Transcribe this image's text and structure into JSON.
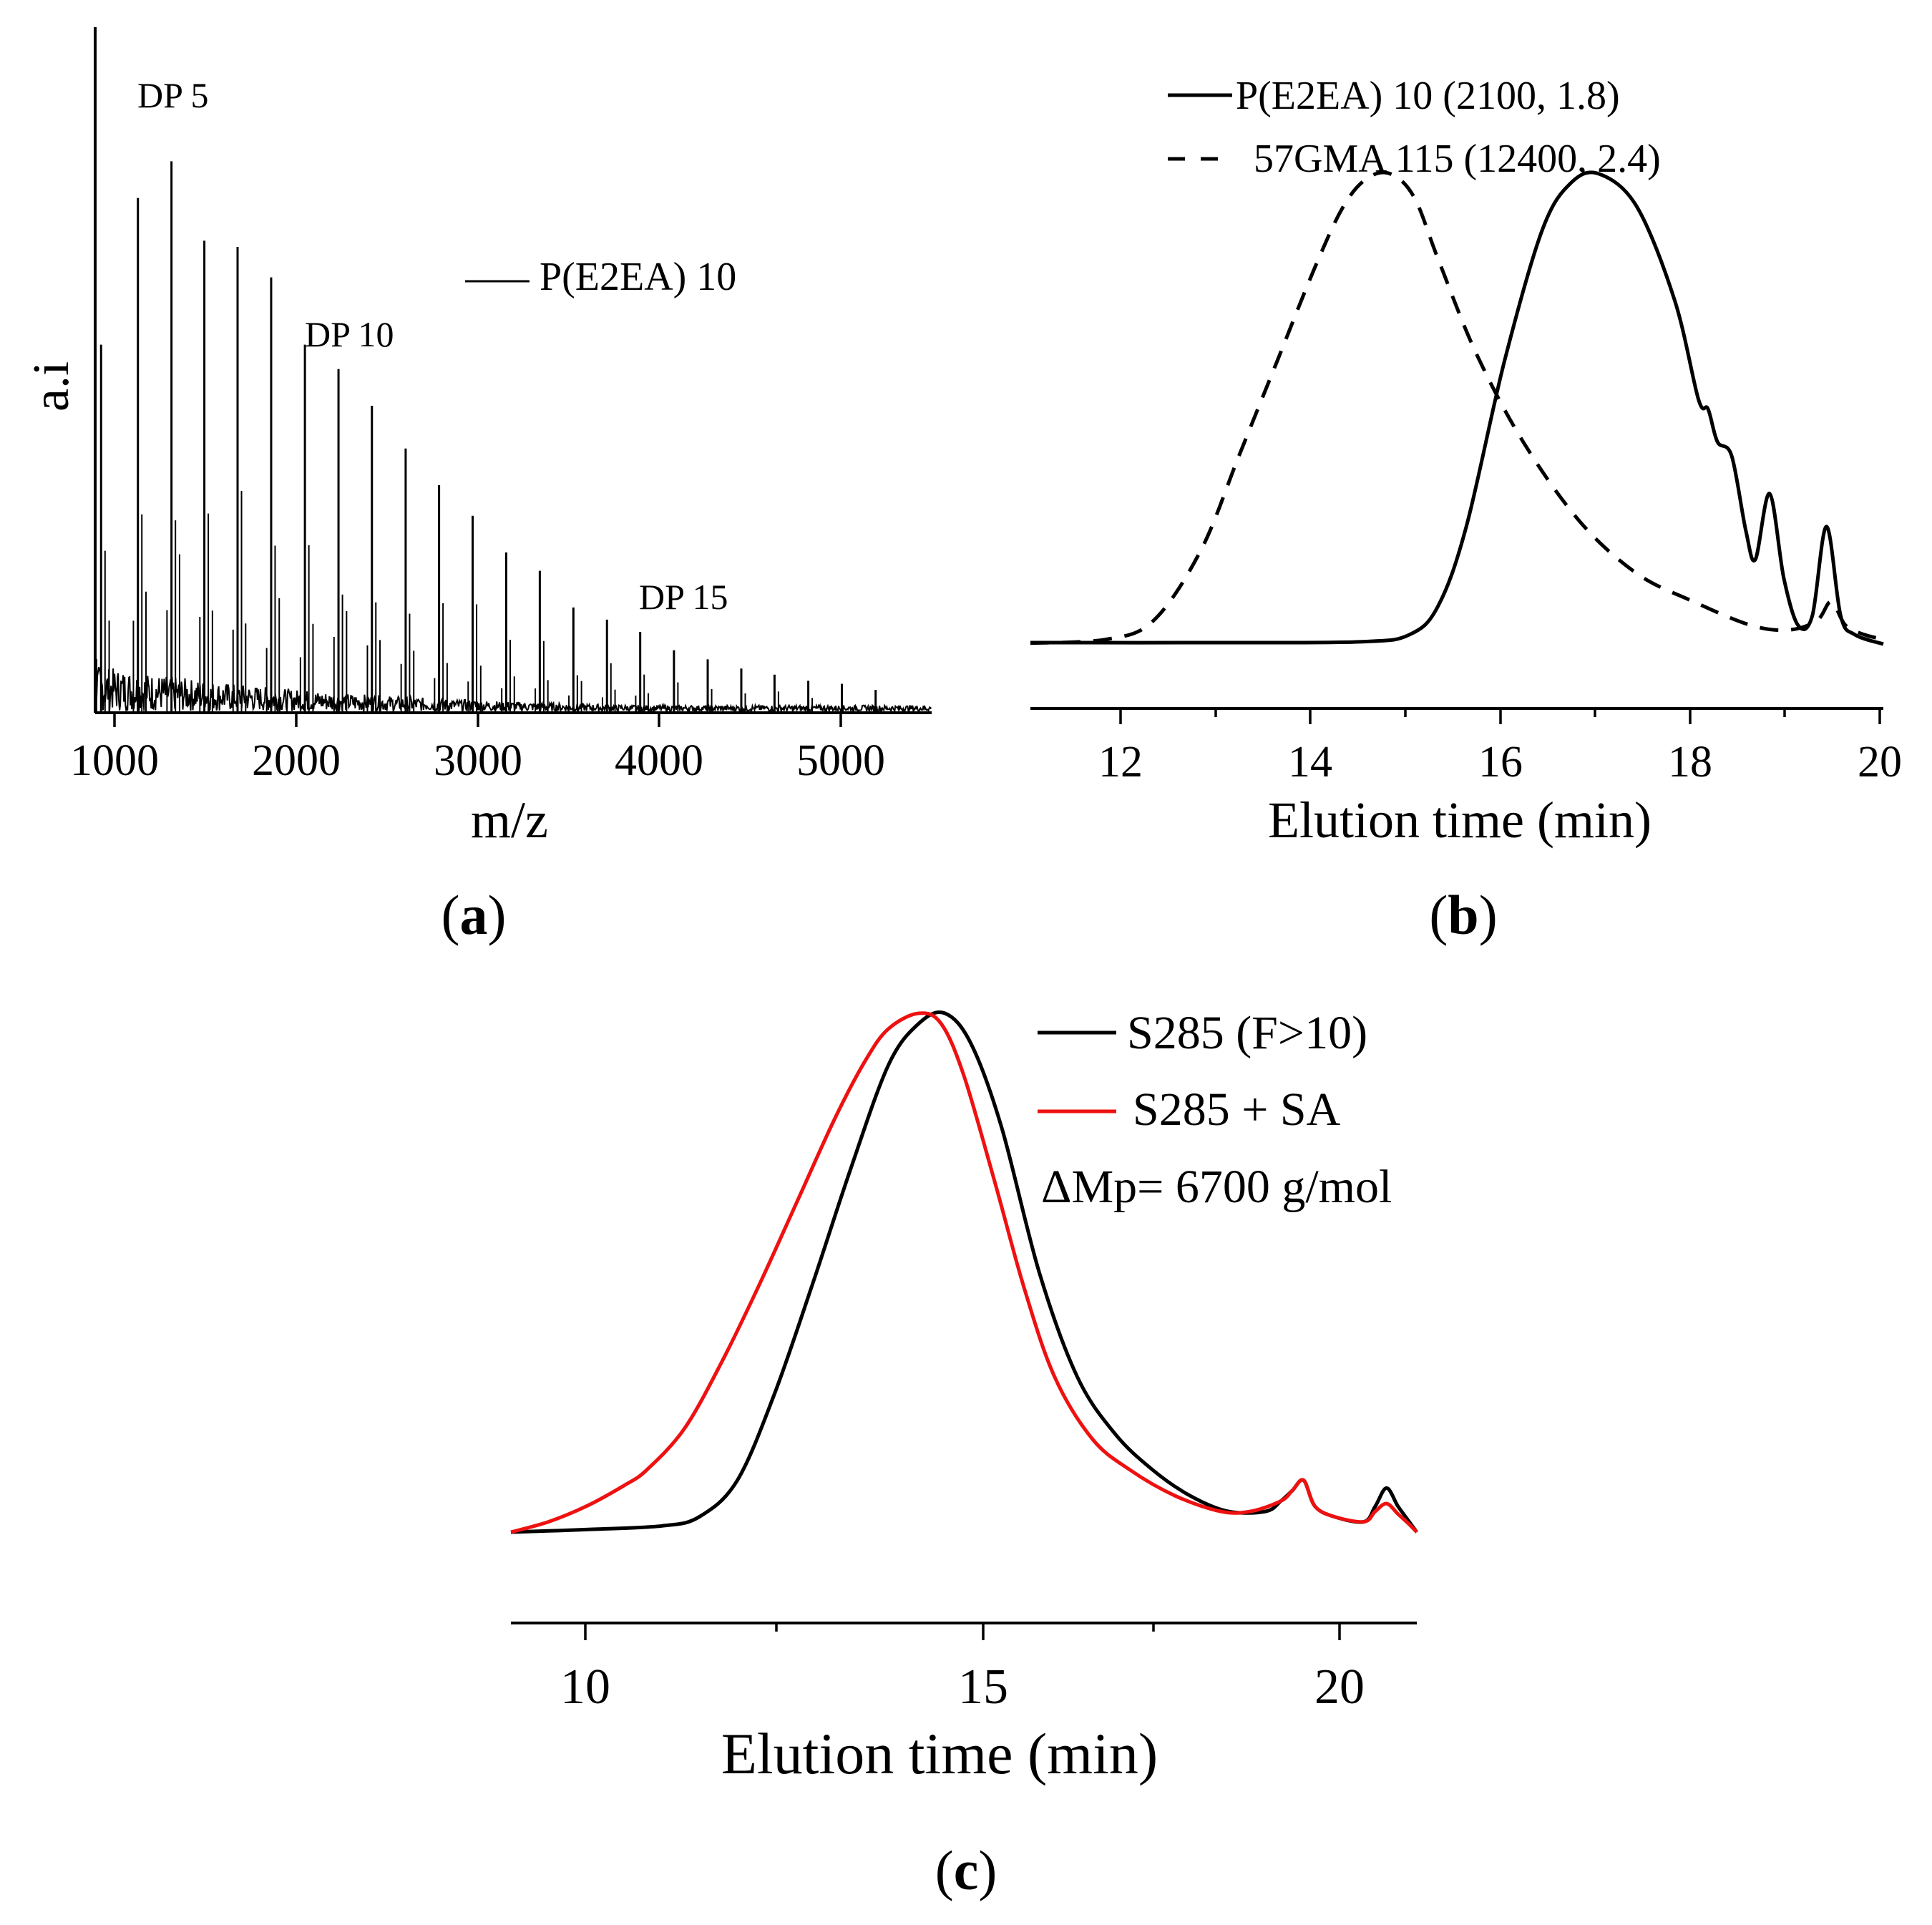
{
  "chart_data": [
    {
      "panel": "a",
      "type": "line",
      "title": "",
      "xlabel": "m/z",
      "ylabel": "a.i",
      "xlim": [
        890,
        5540
      ],
      "ylim": [
        0,
        1.0
      ],
      "xticks": [
        1000,
        2000,
        3000,
        4000,
        5000
      ],
      "legend": [
        {
          "name": "P(E2EA) 10",
          "style": "solid",
          "color": "#000000",
          "placement": "upper-middle"
        }
      ],
      "annotations": [
        {
          "text": "DP 5",
          "x": 1300
        },
        {
          "text": "DP 10",
          "x": 2060
        },
        {
          "text": "DP 15",
          "x": 3910
        }
      ],
      "series": [
        {
          "name": "P(E2EA) 10 main peaks",
          "x": [
            915,
            1120,
            1307,
            1490,
            1675,
            1862,
            2050,
            2237,
            2423,
            2611,
            2797,
            2984,
            3171,
            3358,
            3545,
            3732,
            3917,
            4105,
            4293,
            4480,
            4665,
            4853,
            5040,
            5228
          ],
          "values": [
            0.6,
            0.84,
            0.9,
            0.77,
            0.76,
            0.71,
            0.6,
            0.56,
            0.5,
            0.43,
            0.37,
            0.32,
            0.26,
            0.23,
            0.17,
            0.15,
            0.13,
            0.1,
            0.085,
            0.07,
            0.06,
            0.05,
            0.045,
            0.035
          ]
        }
      ]
    },
    {
      "panel": "b",
      "type": "line",
      "title": "",
      "xlabel": "Elution time (min)",
      "ylabel": "",
      "xlim": [
        11,
        20
      ],
      "ylim": [
        0,
        1
      ],
      "xticks": [
        12,
        14,
        16,
        18,
        20
      ],
      "series": [
        {
          "name": "P(E2EA) 10 (2100, 1.8)",
          "style": "solid",
          "color": "#000000",
          "x": [
            11.0,
            13.0,
            14.5,
            15.0,
            15.3,
            15.6,
            16.0,
            16.4,
            16.7,
            17.0,
            17.4,
            17.8,
            18.05,
            18.15,
            18.25,
            18.4,
            18.55,
            18.65,
            18.8,
            18.95,
            19.1,
            19.25,
            19.4,
            19.55,
            19.7,
            20.0
          ],
          "values": [
            0.003,
            0.003,
            0.005,
            0.02,
            0.08,
            0.25,
            0.6,
            0.88,
            0.98,
            1.0,
            0.93,
            0.73,
            0.52,
            0.5,
            0.43,
            0.4,
            0.24,
            0.18,
            0.32,
            0.14,
            0.04,
            0.06,
            0.25,
            0.06,
            0.02,
            0.0
          ]
        },
        {
          "name": "57GMA 115 (12400, 2.4)",
          "style": "dashed",
          "color": "#000000",
          "x": [
            11.0,
            11.8,
            12.3,
            12.8,
            13.2,
            13.6,
            14.0,
            14.3,
            14.55,
            14.8,
            15.05,
            15.3,
            15.7,
            16.2,
            16.8,
            17.4,
            18.0,
            18.6,
            19.0,
            19.3,
            19.45,
            19.6,
            19.8,
            20.0
          ],
          "values": [
            0.002,
            0.01,
            0.05,
            0.2,
            0.4,
            0.6,
            0.8,
            0.93,
            0.99,
            1.0,
            0.95,
            0.82,
            0.62,
            0.43,
            0.26,
            0.15,
            0.09,
            0.04,
            0.03,
            0.05,
            0.09,
            0.04,
            0.02,
            0.01
          ]
        }
      ]
    },
    {
      "panel": "c",
      "type": "line",
      "title": "",
      "xlabel": "Elution time (min)",
      "ylabel": "",
      "xlim": [
        9,
        21
      ],
      "ylim": [
        0,
        1
      ],
      "xticks": [
        10,
        15,
        20
      ],
      "annotations": [
        {
          "text": "ΔMp= 6700 g/mol"
        }
      ],
      "series": [
        {
          "name": "S285 (F>10)",
          "color": "#000000",
          "x": [
            9.0,
            10.0,
            11.0,
            11.5,
            12.0,
            12.5,
            13.0,
            13.5,
            14.0,
            14.4,
            14.75,
            15.1,
            15.5,
            16.0,
            16.5,
            17.0,
            17.5,
            18.0,
            18.5,
            19.0,
            19.2,
            19.35,
            19.5,
            19.65,
            19.9,
            20.3,
            20.45,
            20.6,
            20.75,
            20.9,
            21.0
          ],
          "values": [
            0.0,
            0.005,
            0.012,
            0.03,
            0.1,
            0.27,
            0.48,
            0.7,
            0.9,
            0.98,
            1.0,
            0.94,
            0.78,
            0.5,
            0.3,
            0.19,
            0.12,
            0.07,
            0.04,
            0.04,
            0.06,
            0.08,
            0.1,
            0.05,
            0.03,
            0.02,
            0.05,
            0.085,
            0.05,
            0.02,
            0.0
          ]
        },
        {
          "name": "S285 + SA",
          "color": "#ee1111",
          "x": [
            9.0,
            9.5,
            10.0,
            10.5,
            10.8,
            11.3,
            11.8,
            12.3,
            12.8,
            13.3,
            13.7,
            14.0,
            14.4,
            14.7,
            15.0,
            15.4,
            15.8,
            16.2,
            16.7,
            17.2,
            17.8,
            18.4,
            18.8,
            19.2,
            19.35,
            19.5,
            19.65,
            19.9,
            20.3,
            20.45,
            20.6,
            20.75,
            20.9,
            21.0
          ],
          "values": [
            0.0,
            0.02,
            0.05,
            0.09,
            0.12,
            0.2,
            0.33,
            0.48,
            0.64,
            0.8,
            0.91,
            0.97,
            1.0,
            0.98,
            0.88,
            0.68,
            0.47,
            0.3,
            0.18,
            0.12,
            0.07,
            0.04,
            0.04,
            0.06,
            0.08,
            0.1,
            0.05,
            0.03,
            0.02,
            0.04,
            0.055,
            0.035,
            0.015,
            0.0
          ]
        }
      ]
    }
  ],
  "panels": {
    "a": {
      "label_open": "(",
      "label_letter": "a",
      "label_close": ")",
      "xlabel": "m/z",
      "ylabel": "a.i",
      "legend_label": "P(E2EA) 10",
      "ann": [
        "DP 5",
        "DP 10",
        "DP 15"
      ],
      "ticks": [
        "1000",
        "2000",
        "3000",
        "4000",
        "5000"
      ]
    },
    "b": {
      "label_open": "(",
      "label_letter": "b",
      "label_close": ")",
      "xlabel": "Elution time (min)",
      "legend": [
        "P(E2EA) 10 (2100, 1.8)",
        "57GMA 115 (12400, 2.4)"
      ],
      "ticks": [
        "12",
        "14",
        "16",
        "18",
        "20"
      ]
    },
    "c": {
      "label_open": "(",
      "label_letter": "c",
      "label_close": ")",
      "xlabel": "Elution time (min)",
      "legend": [
        "S285 (F>10)",
        "S285 + SA"
      ],
      "annotation": "ΔMp= 6700 g/mol",
      "ticks": [
        "10",
        "15",
        "20"
      ]
    }
  }
}
